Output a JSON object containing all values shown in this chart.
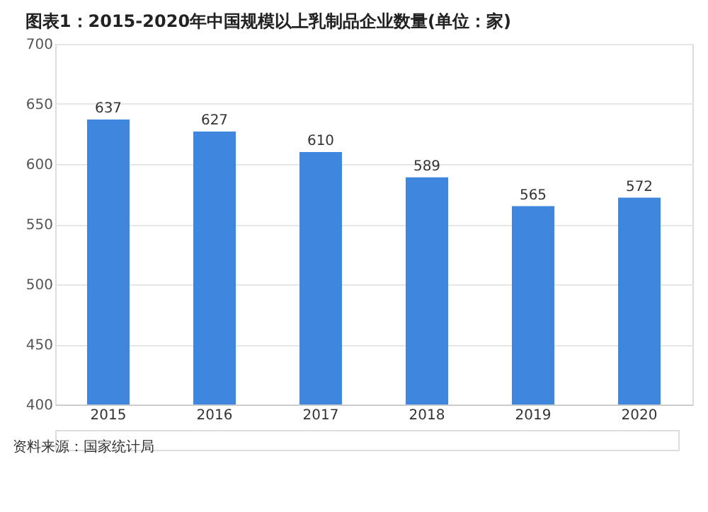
{
  "chart_data": {
    "type": "bar",
    "title": "图表1：2015-2020年中国规模以上乳制品企业数量(单位：家)",
    "categories": [
      "2015",
      "2016",
      "2017",
      "2018",
      "2019",
      "2020"
    ],
    "values": [
      637,
      627,
      610,
      589,
      565,
      572
    ],
    "color": "#3f86de",
    "ylim": [
      400,
      700
    ],
    "yticks": [
      400,
      450,
      500,
      550,
      600,
      650,
      700
    ],
    "grid": "y",
    "data_labels": true,
    "annotations": [
      "资料来源：国家统计局"
    ]
  }
}
